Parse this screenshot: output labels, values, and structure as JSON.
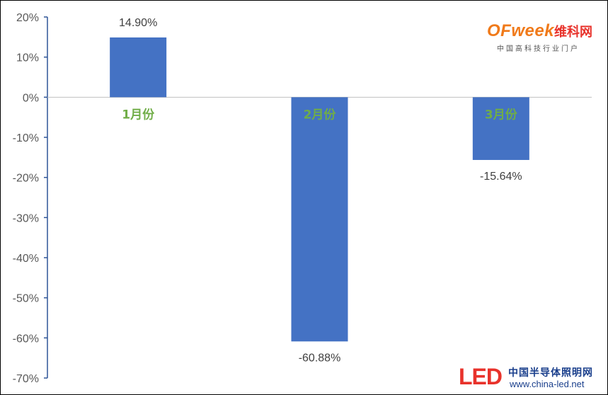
{
  "chart_data": {
    "type": "bar",
    "categories": [
      "1月份",
      "2月份",
      "3月份"
    ],
    "values": [
      14.9,
      -60.88,
      -15.64
    ],
    "data_labels": [
      "14.90%",
      "-60.88%",
      "-15.64%"
    ],
    "y_ticks": [
      "20%",
      "10%",
      "0%",
      "-10%",
      "-20%",
      "-30%",
      "-40%",
      "-50%",
      "-60%",
      "-70%"
    ],
    "ylim": [
      -70,
      20
    ],
    "bar_color": "#4472c4",
    "category_label_color": "#70ad47",
    "grid": false
  },
  "watermarks": {
    "ofweek_brand": "OFweek",
    "ofweek_brand_cn": "维科网",
    "ofweek_sub": "中国高科技行业门户",
    "led_logo_le": "LE",
    "led_logo_d": "D",
    "led_cn": "中国半导体照明网",
    "led_url": "www.china-led.net"
  }
}
